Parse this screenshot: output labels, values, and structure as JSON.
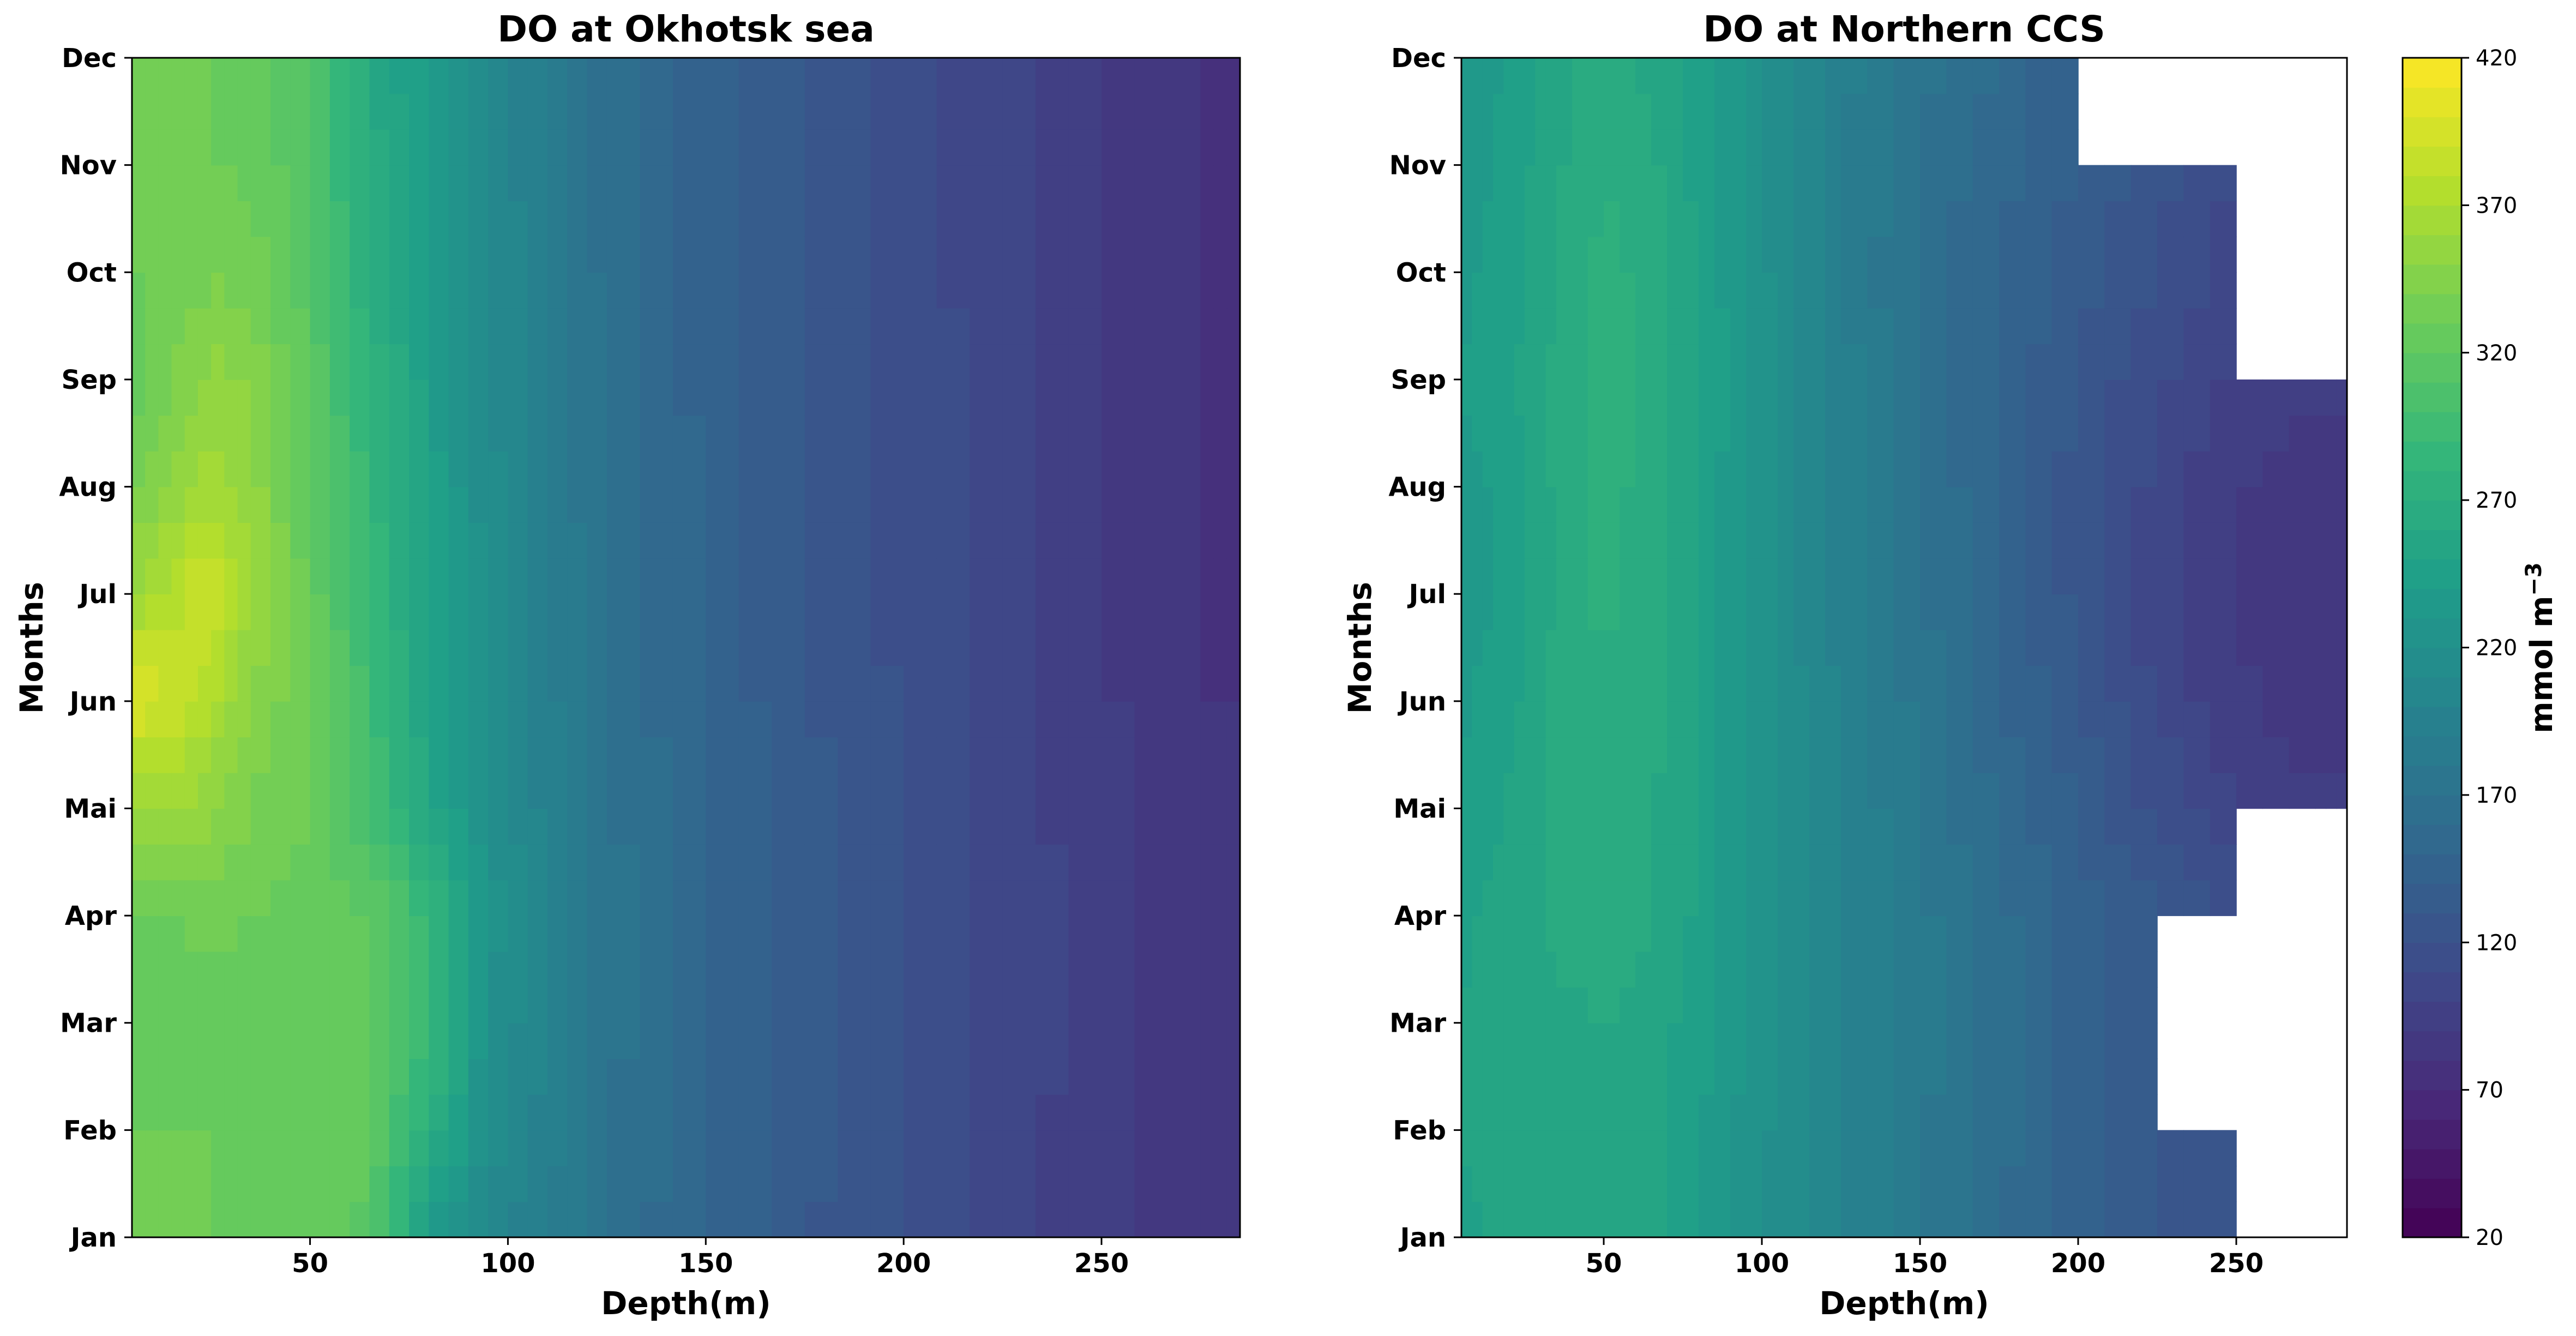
{
  "chart_data": [
    {
      "type": "heatmap",
      "title": "DO at Okhotsk sea",
      "xlabel": "Depth(m)",
      "ylabel": "Months",
      "xlim": [
        5,
        285
      ],
      "xticks": [
        50,
        100,
        150,
        200,
        250
      ],
      "y_categories": [
        "Jan",
        "Feb",
        "Mar",
        "Apr",
        "Mai",
        "Jun",
        "Jul",
        "Aug",
        "Sep",
        "Oct",
        "Nov",
        "Dec"
      ],
      "x": [
        5,
        15,
        25,
        35,
        50,
        65,
        80,
        95,
        110,
        125,
        150,
        175,
        200,
        225,
        250,
        275,
        285
      ],
      "values": [
        [
          330,
          330,
          330,
          328,
          325,
          318,
          240,
          205,
          190,
          170,
          148,
          132,
          118,
          105,
          92,
          80,
          80
        ],
        [
          330,
          330,
          330,
          328,
          325,
          320,
          275,
          215,
          195,
          172,
          150,
          133,
          119,
          106,
          93,
          81,
          81
        ],
        [
          325,
          325,
          325,
          325,
          322,
          320,
          290,
          222,
          198,
          174,
          152,
          134,
          120,
          107,
          94,
          82,
          82
        ],
        [
          325,
          330,
          332,
          330,
          325,
          320,
          290,
          225,
          200,
          176,
          153,
          135,
          121,
          107,
          94,
          82,
          82
        ],
        [
          355,
          360,
          355,
          340,
          330,
          300,
          255,
          220,
          196,
          172,
          150,
          133,
          119,
          106,
          93,
          81,
          81
        ],
        [
          400,
          390,
          370,
          350,
          330,
          295,
          250,
          218,
          194,
          170,
          148,
          132,
          118,
          105,
          92,
          80,
          80
        ],
        [
          360,
          375,
          395,
          360,
          325,
          290,
          248,
          216,
          193,
          169,
          147,
          131,
          117,
          104,
          91,
          79,
          79
        ],
        [
          335,
          350,
          365,
          355,
          320,
          285,
          246,
          214,
          191,
          168,
          147,
          131,
          117,
          104,
          91,
          79,
          79
        ],
        [
          320,
          340,
          355,
          350,
          318,
          280,
          244,
          213,
          190,
          167,
          146,
          130,
          117,
          104,
          91,
          79,
          79
        ],
        [
          330,
          330,
          338,
          335,
          315,
          270,
          240,
          212,
          189,
          166,
          146,
          130,
          116,
          103,
          91,
          79,
          79
        ],
        [
          330,
          330,
          330,
          328,
          312,
          265,
          238,
          211,
          188,
          166,
          146,
          130,
          116,
          103,
          90,
          79,
          79
        ],
        [
          330,
          330,
          330,
          325,
          310,
          262,
          236,
          210,
          188,
          166,
          146,
          130,
          116,
          103,
          90,
          79,
          79
        ]
      ]
    },
    {
      "type": "heatmap",
      "title": "DO at Northern CCS",
      "xlabel": "Depth(m)",
      "ylabel": "Months",
      "xlim": [
        5,
        285
      ],
      "xticks": [
        50,
        100,
        150,
        200,
        250
      ],
      "y_categories": [
        "Jan",
        "Feb",
        "Mar",
        "Apr",
        "Mai",
        "Jun",
        "Jul",
        "Aug",
        "Sep",
        "Oct",
        "Nov",
        "Dec"
      ],
      "x": [
        5,
        15,
        25,
        35,
        50,
        65,
        80,
        95,
        110,
        125,
        150,
        175,
        200,
        225,
        250,
        275,
        285
      ],
      "values": [
        [
          248,
          250,
          252,
          254,
          256,
          252,
          240,
          225,
          212,
          200,
          182,
          162,
          146,
          132,
          118,
          108,
          104
        ],
        [
          250,
          252,
          254,
          256,
          258,
          254,
          242,
          227,
          213,
          201,
          183,
          163,
          146,
          132,
          118,
          null,
          null
        ],
        [
          250,
          252,
          254,
          258,
          260,
          256,
          244,
          228,
          214,
          202,
          184,
          164,
          147,
          132,
          null,
          null,
          null
        ],
        [
          248,
          252,
          256,
          262,
          266,
          262,
          248,
          230,
          215,
          202,
          184,
          164,
          146,
          130,
          115,
          null,
          null
        ],
        [
          242,
          248,
          255,
          262,
          268,
          262,
          248,
          230,
          214,
          200,
          180,
          158,
          138,
          118,
          100,
          92,
          92
        ],
        [
          238,
          244,
          252,
          262,
          270,
          263,
          248,
          230,
          213,
          198,
          176,
          152,
          130,
          108,
          92,
          84,
          84
        ],
        [
          232,
          238,
          248,
          262,
          272,
          264,
          248,
          229,
          212,
          196,
          172,
          148,
          126,
          104,
          88,
          82,
          82
        ],
        [
          235,
          240,
          250,
          262,
          274,
          266,
          249,
          230,
          212,
          196,
          172,
          148,
          126,
          106,
          90,
          84,
          84
        ],
        [
          240,
          245,
          252,
          262,
          276,
          267,
          250,
          231,
          212,
          195,
          170,
          146,
          128,
          112,
          98,
          92,
          92
        ],
        [
          238,
          242,
          250,
          260,
          274,
          266,
          249,
          230,
          210,
          192,
          165,
          150,
          136,
          120,
          104,
          null,
          null
        ],
        [
          235,
          240,
          248,
          258,
          270,
          262,
          247,
          229,
          210,
          193,
          170,
          154,
          138,
          124,
          110,
          96,
          96
        ],
        [
          232,
          238,
          246,
          256,
          264,
          258,
          244,
          228,
          210,
          194,
          174,
          158,
          142,
          null,
          null,
          null,
          null
        ]
      ]
    }
  ],
  "colorbar": {
    "label": "mmol m",
    "label_exponent": "−3",
    "vmin": 20,
    "vmax": 420,
    "ticks": [
      20,
      70,
      120,
      170,
      220,
      270,
      320,
      370,
      420
    ],
    "levels": 40,
    "colormap": "viridis"
  }
}
